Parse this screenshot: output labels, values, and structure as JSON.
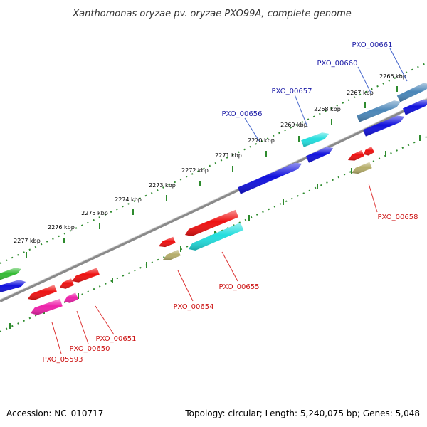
{
  "title": "Xanthomonas oryzae pv. oryzae PXO99A, complete genome",
  "accession": "Accession: NC_010717",
  "topology": "Topology: circular; Length: 5,240,075 bp; Genes: 5,048",
  "colors": {
    "backbone": "#8a8a8a",
    "tick_dots": "#2e8b2e",
    "plus_label": "#1a1aa6",
    "minus_label": "#cc1111",
    "leader": "#4466cc",
    "leader_minus": "#dd3333"
  },
  "ruler": [
    {
      "label": "2277 kbp"
    },
    {
      "label": "2276 kbp"
    },
    {
      "label": "2275 kbp"
    },
    {
      "label": "2274 kbp"
    },
    {
      "label": "2273 kbp"
    },
    {
      "label": "2272 kbp"
    },
    {
      "label": "2271 kbp"
    },
    {
      "label": "2270 kbp"
    },
    {
      "label": "2269 kbp"
    },
    {
      "label": "2268 kbp"
    },
    {
      "label": "2267 kbp"
    },
    {
      "label": "2266 kbp"
    }
  ],
  "plus_labels": [
    "PXO_00656",
    "PXO_00657",
    "PXO_00660",
    "PXO_00661"
  ],
  "minus_labels": [
    "PXO_00658",
    "PXO_00655",
    "PXO_00654",
    "PXO_00651",
    "PXO_00650",
    "PXO_05593"
  ],
  "genes": [
    {
      "name": "gene-green-left",
      "color": "#33bb33"
    },
    {
      "name": "gene-blue-left",
      "color": "#1111dd"
    },
    {
      "name": "gene-blue-00656",
      "color": "#1111dd"
    },
    {
      "name": "gene-cyan-00657",
      "color": "#22dddd"
    },
    {
      "name": "gene-blue-00657",
      "color": "#1111dd"
    },
    {
      "name": "gene-steel-00660",
      "color": "#4a86b8"
    },
    {
      "name": "gene-steel-00661",
      "color": "#4a86b8"
    },
    {
      "name": "gene-blue-right-1",
      "color": "#1111dd"
    },
    {
      "name": "gene-blue-right-2",
      "color": "#1111dd"
    },
    {
      "name": "gene-red-00658a",
      "color": "#ee1111"
    },
    {
      "name": "gene-red-00658b",
      "color": "#ee1111"
    },
    {
      "name": "gene-khaki-00658",
      "color": "#b5ad6a"
    },
    {
      "name": "gene-red-00655",
      "color": "#ee1111"
    },
    {
      "name": "gene-cyan-00655",
      "color": "#22dddd"
    },
    {
      "name": "gene-red-00654",
      "color": "#ee1111"
    },
    {
      "name": "gene-khaki-00654",
      "color": "#b5ad6a"
    },
    {
      "name": "gene-red-00651",
      "color": "#ee1111"
    },
    {
      "name": "gene-red-00650",
      "color": "#ee1111"
    },
    {
      "name": "gene-red-05593",
      "color": "#ee1111"
    },
    {
      "name": "gene-pink-05593",
      "color": "#ee22aa"
    },
    {
      "name": "gene-pink-00650",
      "color": "#ee22aa"
    }
  ]
}
